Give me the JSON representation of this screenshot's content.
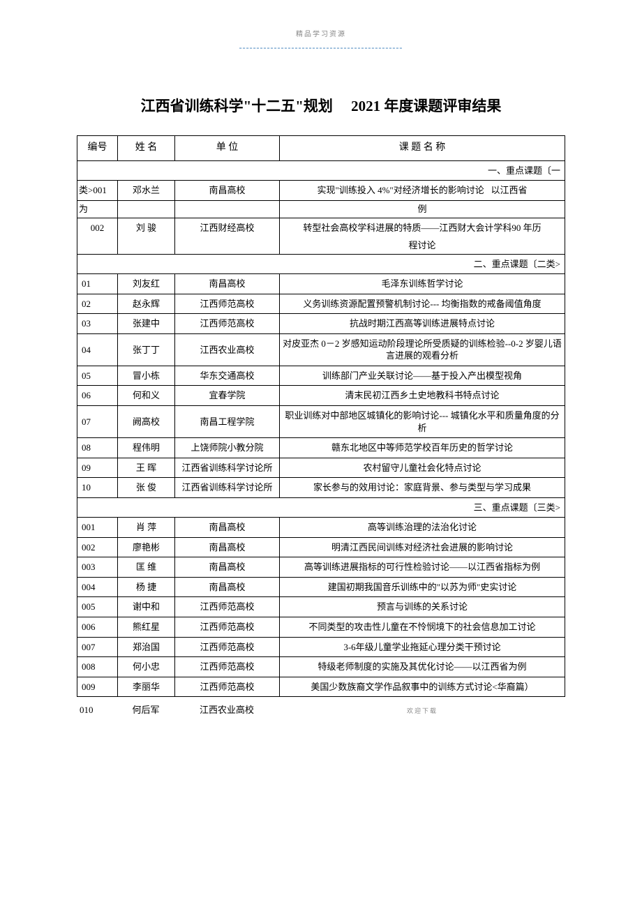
{
  "header_watermark": "精品学习资源",
  "header_dashes": "-----------------------------------------------",
  "title_prefix": "江西省训练科学\"十二五\"规划",
  "title_year": "2021",
  "title_suffix": "年度课题评审结果",
  "columns": {
    "id": "编号",
    "name": "姓 名",
    "unit": "单  位",
    "topic": "课  题  名  称"
  },
  "section1_label": "一、重点课题〔一",
  "section1_row1": {
    "id_prefix": "类>",
    "id": "001",
    "name": "邓水兰",
    "unit": "南昌高校",
    "topic_a": "实现\"训练投入 4%\"对经济增长的影响讨论",
    "topic_b": "以江西省"
  },
  "section1_row1b": {
    "id": "为",
    "topic": "例"
  },
  "section1_row2": {
    "id": "002",
    "name": "刘 骏",
    "unit": "江西财经高校",
    "topic_a": "转型社会高校学科进展的特质——江西财大会计学科90 年历",
    "topic_b": "程讨论"
  },
  "section2_label": "二、重点课题〔二类>",
  "section2_rows": [
    {
      "id": "01",
      "name": "刘友红",
      "unit": "南昌高校",
      "topic": "毛泽东训练哲学讨论"
    },
    {
      "id": "02",
      "name": "赵永辉",
      "unit": "江西师范高校",
      "topic": "义务训练资源配置预警机制讨论--- 均衡指数的戒备阈值角度"
    },
    {
      "id": "03",
      "name": "张建中",
      "unit": "江西师范高校",
      "topic": "抗战时期江西高等训练进展特点讨论"
    },
    {
      "id": "04",
      "name": "张丁丁",
      "unit": "江西农业高校",
      "topic": "对皮亚杰  0－2  岁感知运动阶段理论所受质疑的训练检验--0-2 岁婴儿语言进展的观看分析"
    },
    {
      "id": "05",
      "name": "冒小栋",
      "unit": "华东交通高校",
      "topic": "训练部门产业关联讨论——基于投入产出模型视角"
    },
    {
      "id": "06",
      "name": "何和义",
      "unit": "宜春学院",
      "topic": "清末民初江西乡土史地教科书特点讨论"
    },
    {
      "id": "07",
      "name": "阙高校",
      "unit": "南昌工程学院",
      "topic": "职业训练对中部地区城镇化的影响讨论--- 城镇化水平和质量角度的分析"
    },
    {
      "id": "08",
      "name": "程伟明",
      "unit": "上饶师院小教分院",
      "topic": "赣东北地区中等师范学校百年历史的哲学讨论"
    },
    {
      "id": "09",
      "name": "王 晖",
      "unit": "江西省训练科学讨论所",
      "topic": "农村留守儿童社会化特点讨论"
    },
    {
      "id": "10",
      "name": "张 俊",
      "unit": "江西省训练科学讨论所",
      "topic": "家长参与的效用讨论：家庭背景、参与类型与学习成果"
    }
  ],
  "section3_label": "三、重点课题〔三类>",
  "section3_rows": [
    {
      "id": "001",
      "name": "肖 萍",
      "unit": "南昌高校",
      "topic": "高等训练治理的法治化讨论"
    },
    {
      "id": "002",
      "name": "廖艳彬",
      "unit": "南昌高校",
      "topic": "明清江西民间训练对经济社会进展的影响讨论"
    },
    {
      "id": "003",
      "name": "匡 维",
      "unit": "南昌高校",
      "topic": "高等训练进展指标的可行性检验讨论——以江西省指标为例"
    },
    {
      "id": "004",
      "name": "杨 捷",
      "unit": "南昌高校",
      "topic": "建国初期我国音乐训练中的\"以苏为师\"史实讨论"
    },
    {
      "id": "005",
      "name": "谢中和",
      "unit": "江西师范高校",
      "topic": "预言与训练的关系讨论"
    },
    {
      "id": "006",
      "name": "熊红星",
      "unit": "江西师范高校",
      "topic": "不同类型的攻击性儿童在不怜悯境下的社会信息加工讨论"
    },
    {
      "id": "007",
      "name": "郑治国",
      "unit": "江西师范高校",
      "topic": "3-6年级儿童学业拖延心理分类干预讨论"
    },
    {
      "id": "008",
      "name": "何小忠",
      "unit": "江西师范高校",
      "topic": "特级老师制度的实施及其优化讨论——以江西省为例"
    },
    {
      "id": "009",
      "name": "李丽华",
      "unit": "江西师范高校",
      "topic": "美国少数族裔文学作品叙事中的训练方式讨论<华裔篇）"
    }
  ],
  "trailing_row": {
    "id": "010",
    "name": "何后军",
    "unit": "江西农业高校"
  },
  "footer_watermark": "欢迎下载"
}
